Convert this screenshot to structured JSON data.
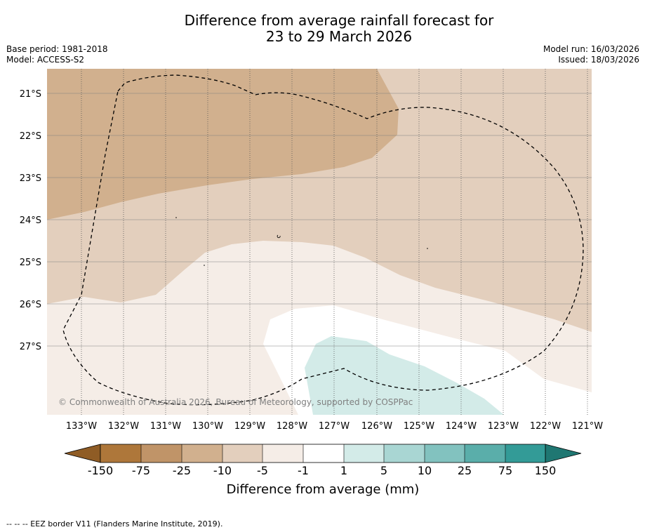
{
  "title_line1": "Difference from average rainfall forecast for",
  "title_line2": "23 to 29 March 2026",
  "base_period": "Base period: 1981-2018",
  "model": "Model: ACCESS-S2",
  "model_run": "Model run: 16/03/2026",
  "issued": "Issued: 18/03/2026",
  "copyright": "© Commonwealth of Australia 2026, Bureau of Meteorology, supported by COSPPac",
  "lat_labels": [
    "21°S",
    "22°S",
    "23°S",
    "24°S",
    "25°S",
    "26°S",
    "27°S"
  ],
  "lon_labels": [
    "133°W",
    "132°W",
    "131°W",
    "130°W",
    "129°W",
    "128°W",
    "127°W",
    "126°W",
    "125°W",
    "124°W",
    "123°W",
    "122°W",
    "121°W"
  ],
  "colorbar": {
    "labels": [
      "-150",
      "-75",
      "-25",
      "-10",
      "-5",
      "-1",
      "1",
      "5",
      "10",
      "25",
      "75",
      "150"
    ],
    "colors": [
      "#ae773a",
      "#c09468",
      "#d1b08e",
      "#e3cfbd",
      "#f5ede7",
      "#ffffff",
      "#d3ebe8",
      "#a9d6d3",
      "#82c2bf",
      "#5aaeaa",
      "#339b97"
    ],
    "under_color": "#8f5c25",
    "over_color": "#1f7772",
    "title": "Difference from average (mm)"
  },
  "footnote": "-- -- -- EEZ border V11 (Flanders Marine Institute, 2019)."
}
